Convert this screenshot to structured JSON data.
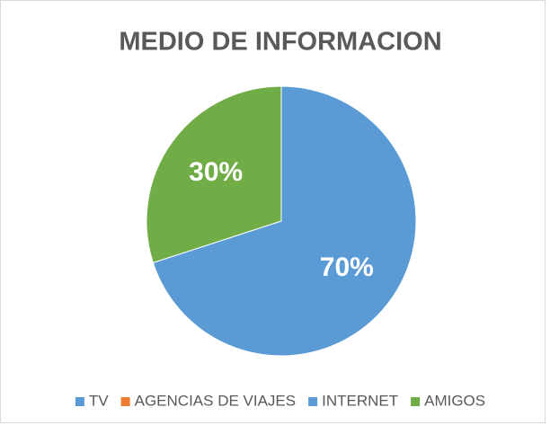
{
  "chart_data": {
    "type": "pie",
    "title": "MEDIO DE INFORMACION",
    "categories": [
      "TV",
      "AGENCIAS DE VIAJES",
      "INTERNET",
      "AMIGOS"
    ],
    "values": [
      70,
      0,
      0,
      30
    ],
    "value_labels": [
      "70%",
      null,
      null,
      "30%"
    ],
    "colors": [
      "#5b9bd5",
      "#ed7d31",
      "#5b9bd5",
      "#70ad47"
    ],
    "legend": "bottom"
  }
}
